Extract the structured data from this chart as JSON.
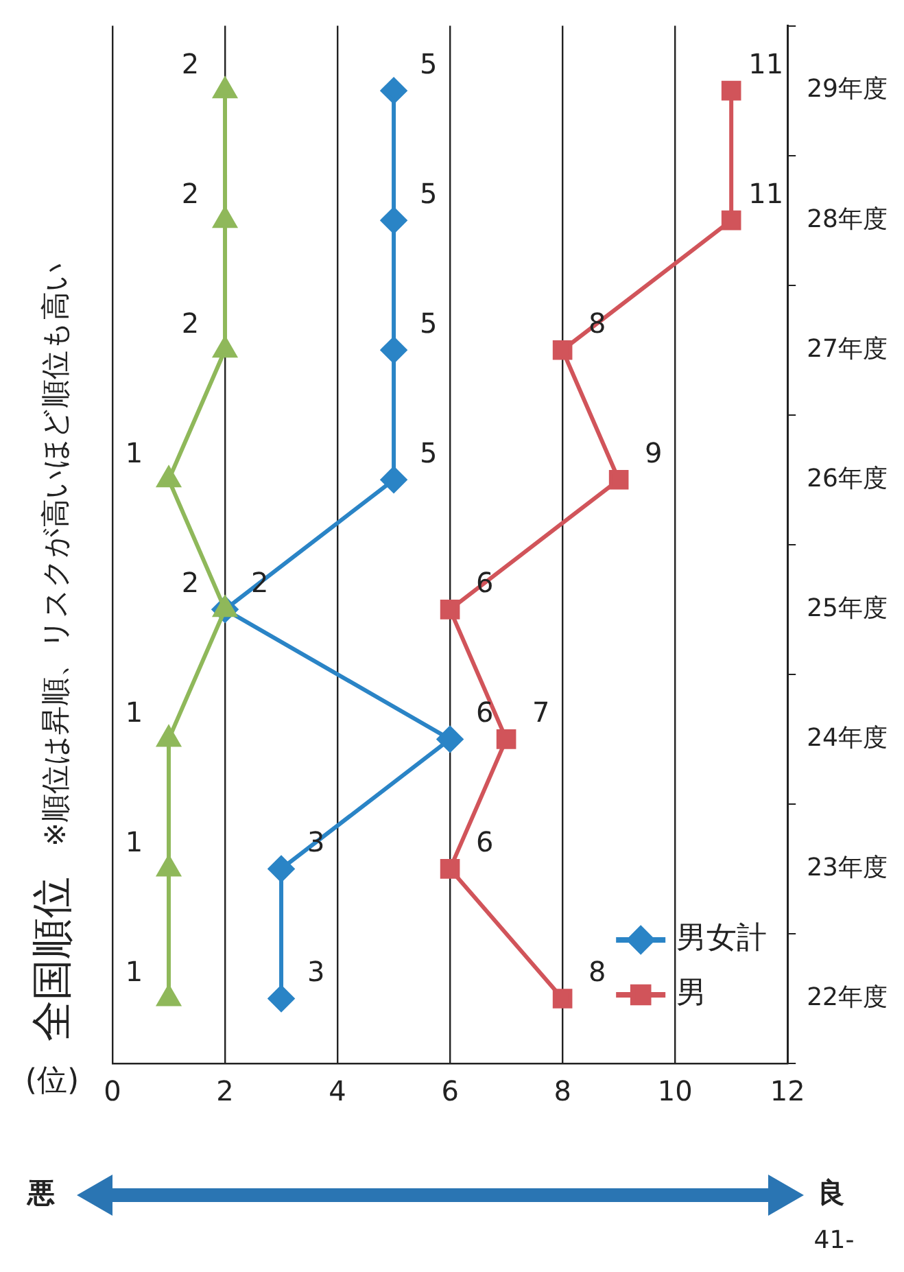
{
  "chart_data": {
    "type": "line",
    "orientation": "horizontal",
    "title": "全国順位",
    "subtitle": "※順位は昇順、リスクが高いほど順位も高い",
    "xlabel": "(位)",
    "categories": [
      "29年度",
      "28年度",
      "27年度",
      "26年度",
      "25年度",
      "24年度",
      "23年度",
      "22年度"
    ],
    "series": [
      {
        "color": "#8fb85a",
        "marker": "triangle",
        "values": [
          2,
          2,
          2,
          1,
          2,
          1,
          1,
          1
        ]
      },
      {
        "name": "男女計",
        "color": "#2a84c6",
        "marker": "diamond",
        "values": [
          5,
          5,
          5,
          5,
          2,
          6,
          3,
          3
        ]
      },
      {
        "name": "男",
        "color": "#d1545a",
        "marker": "square",
        "values": [
          11,
          11,
          8,
          9,
          6,
          7,
          6,
          8
        ]
      }
    ],
    "xlim": [
      0,
      12
    ],
    "xticks": [
      0,
      2,
      4,
      6,
      8,
      10,
      12
    ],
    "grid": "x",
    "legend": "bottom right",
    "data_labels": true,
    "annotations": [
      "悪",
      "良",
      "41-"
    ]
  }
}
